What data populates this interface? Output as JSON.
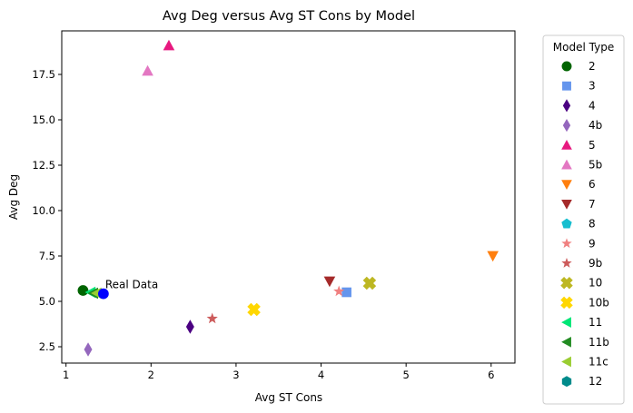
{
  "chart_data": {
    "type": "scatter",
    "title": "Avg Deg versus Avg ST Cons by Model",
    "xlabel": "Avg ST Cons",
    "ylabel": "Avg Deg",
    "xlim": [
      0.95,
      6.28
    ],
    "ylim": [
      1.6,
      19.9
    ],
    "xticks": [
      1,
      2,
      3,
      4,
      5,
      6
    ],
    "yticks": [
      2.5,
      5.0,
      7.5,
      10.0,
      12.5,
      15.0,
      17.5
    ],
    "ytick_labels": [
      "2.5",
      "5.0",
      "7.5",
      "10.0",
      "12.5",
      "15.0",
      "17.5"
    ],
    "grid": false,
    "legend": {
      "title": "Model Type",
      "placement": "outside-right"
    },
    "series": [
      {
        "name": "2",
        "marker": "circle",
        "color": "#006400",
        "points": [
          [
            1.2,
            5.6
          ]
        ]
      },
      {
        "name": "3",
        "marker": "square",
        "color": "#6495ED",
        "points": [
          [
            4.3,
            5.5
          ]
        ]
      },
      {
        "name": "4",
        "marker": "thin-diamond",
        "color": "#4B0082",
        "points": [
          [
            2.46,
            3.6
          ]
        ]
      },
      {
        "name": "4b",
        "marker": "thin-diamond",
        "color": "#9467BD",
        "points": [
          [
            1.26,
            2.35
          ]
        ]
      },
      {
        "name": "5",
        "marker": "triangle-up",
        "color": "#E7197F",
        "points": [
          [
            2.21,
            19.1
          ]
        ]
      },
      {
        "name": "5b",
        "marker": "triangle-up",
        "color": "#E377C2",
        "points": [
          [
            1.96,
            17.7
          ]
        ]
      },
      {
        "name": "6",
        "marker": "triangle-down",
        "color": "#FF7F0E",
        "points": [
          [
            6.02,
            7.5
          ]
        ]
      },
      {
        "name": "7",
        "marker": "triangle-down",
        "color": "#A52A2A",
        "points": [
          [
            4.1,
            6.1
          ]
        ]
      },
      {
        "name": "8",
        "marker": "pentagon",
        "color": "#17BECF",
        "points": []
      },
      {
        "name": "9",
        "marker": "star",
        "color": "#F08080",
        "points": [
          [
            4.21,
            5.55
          ]
        ]
      },
      {
        "name": "9b",
        "marker": "star",
        "color": "#CD5C5C",
        "points": [
          [
            2.72,
            4.05
          ]
        ]
      },
      {
        "name": "10",
        "marker": "x-filled",
        "color": "#BDB722",
        "points": [
          [
            4.57,
            6.0
          ]
        ]
      },
      {
        "name": "10b",
        "marker": "x-filled",
        "color": "#FFD700",
        "points": [
          [
            3.21,
            4.55
          ]
        ]
      },
      {
        "name": "11",
        "marker": "triangle-left",
        "color": "#00E676",
        "points": [
          [
            1.29,
            5.5
          ]
        ]
      },
      {
        "name": "11b",
        "marker": "triangle-left",
        "color": "#228B22",
        "points": [
          [
            1.32,
            5.45
          ]
        ]
      },
      {
        "name": "11c",
        "marker": "triangle-left",
        "color": "#9ACD32",
        "points": [
          [
            1.36,
            5.45
          ]
        ]
      },
      {
        "name": "12",
        "marker": "hexagon",
        "color": "#008B8B",
        "points": []
      }
    ],
    "annotations": [
      {
        "text": "Real Data",
        "x": 1.44,
        "y": 5.42,
        "marker": "circle",
        "color": "#0000FF"
      }
    ]
  }
}
